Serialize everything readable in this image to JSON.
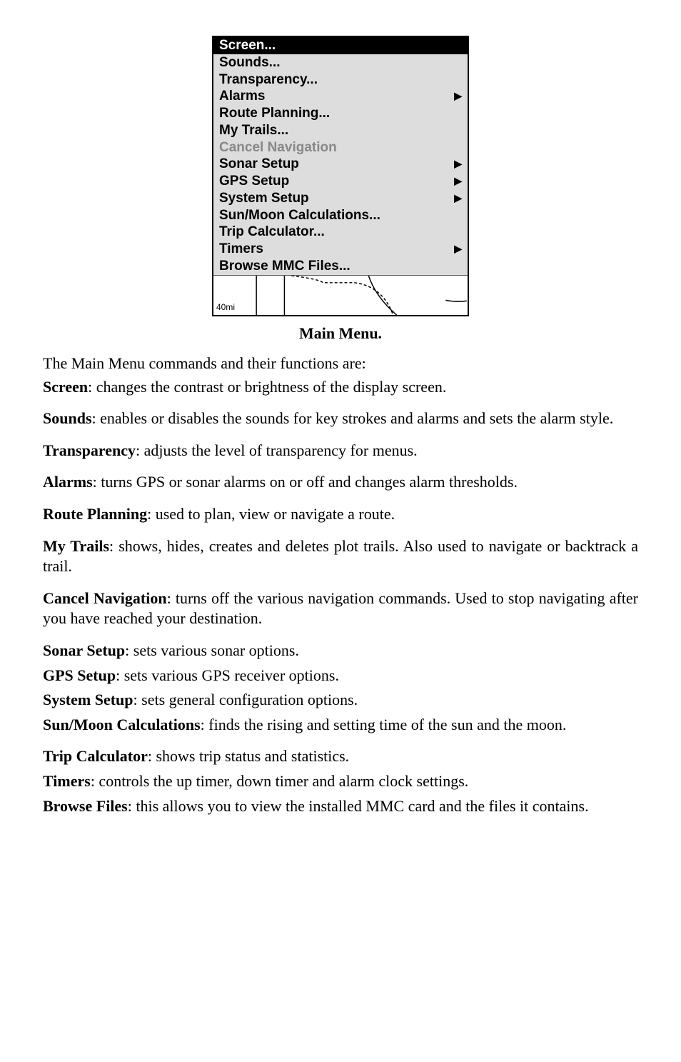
{
  "menu": {
    "items": [
      {
        "label": "Screen...",
        "selected": true,
        "hasArrow": false,
        "disabled": false
      },
      {
        "label": "Sounds...",
        "selected": false,
        "hasArrow": false,
        "disabled": false
      },
      {
        "label": "Transparency...",
        "selected": false,
        "hasArrow": false,
        "disabled": false
      },
      {
        "label": "Alarms",
        "selected": false,
        "hasArrow": true,
        "disabled": false
      },
      {
        "label": "Route Planning...",
        "selected": false,
        "hasArrow": false,
        "disabled": false
      },
      {
        "label": "My Trails...",
        "selected": false,
        "hasArrow": false,
        "disabled": false
      },
      {
        "label": "Cancel Navigation",
        "selected": false,
        "hasArrow": false,
        "disabled": true
      },
      {
        "label": "Sonar Setup",
        "selected": false,
        "hasArrow": true,
        "disabled": false
      },
      {
        "label": "GPS Setup",
        "selected": false,
        "hasArrow": true,
        "disabled": false
      },
      {
        "label": "System Setup",
        "selected": false,
        "hasArrow": true,
        "disabled": false
      },
      {
        "label": "Sun/Moon Calculations...",
        "selected": false,
        "hasArrow": false,
        "disabled": false
      },
      {
        "label": "Trip Calculator...",
        "selected": false,
        "hasArrow": false,
        "disabled": false
      },
      {
        "label": "Timers",
        "selected": false,
        "hasArrow": true,
        "disabled": false
      },
      {
        "label": "Browse MMC Files...",
        "selected": false,
        "hasArrow": false,
        "disabled": false
      }
    ],
    "scaleLabel": "40mi",
    "arrowGlyph": "▶"
  },
  "caption": "Main Menu.",
  "intro": "The Main Menu commands and their functions are:",
  "definitions": [
    {
      "term": "Screen",
      "text": ": changes the contrast or brightness of the display screen.",
      "spacing": "def"
    },
    {
      "term": "Sounds",
      "text": ": enables or disables the sounds for key strokes and alarms and sets the alarm style.",
      "spacing": "def"
    },
    {
      "term": "Transparency",
      "text": ": adjusts the level of transparency for menus.",
      "spacing": "def"
    },
    {
      "term": "Alarms",
      "text": ": turns GPS or sonar alarms on or off and changes alarm thresholds.",
      "spacing": "def"
    },
    {
      "term": "Route Planning",
      "text": ": used to plan, view or navigate a route.",
      "spacing": "def"
    },
    {
      "term": "My Trails",
      "text": ": shows, hides, creates and deletes plot trails. Also used to navigate or backtrack a trail.",
      "spacing": "def"
    },
    {
      "term": "Cancel Navigation",
      "text": ": turns off the various navigation commands. Used to stop navigating after you have reached your destination.",
      "spacing": "def"
    },
    {
      "term": "Sonar Setup",
      "text": ": sets various sonar options.",
      "spacing": "def-tight"
    },
    {
      "term": "GPS Setup",
      "text": ": sets various GPS receiver options.",
      "spacing": "def-tight"
    },
    {
      "term": "System Setup",
      "text": ": sets general configuration options.",
      "spacing": "def-tight"
    },
    {
      "term": "Sun/Moon Calculations",
      "text": ": finds the rising and setting time of the sun and the moon.",
      "spacing": "def"
    },
    {
      "term": "Trip Calculator",
      "text": ": shows trip status and statistics.",
      "spacing": "def-tight"
    },
    {
      "term": "Timers",
      "text": ": controls the up timer, down timer and alarm clock settings.",
      "spacing": "def-tight"
    },
    {
      "term": "Browse Files",
      "text": ": this allows you to view the installed MMC card and the files it contains.",
      "spacing": "def"
    }
  ]
}
